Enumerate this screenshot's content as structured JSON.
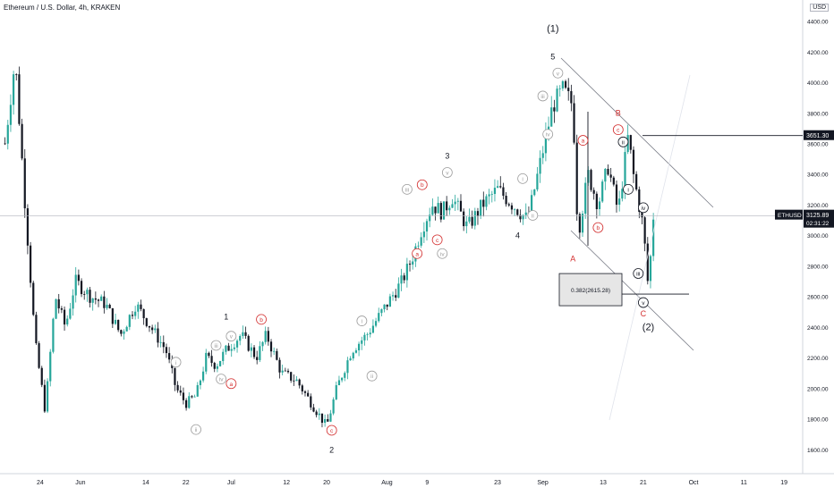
{
  "header": {
    "title": "Ethereum / U.S. Dollar, 4h, KRAKEN",
    "currency": "USD"
  },
  "colors": {
    "up": "#26a69a",
    "down": "#131722",
    "wave_red": "#d32f2f",
    "wave_gray": "#9e9e9e",
    "channel": "#787b86",
    "axis_text": "#131722"
  },
  "chart_data": {
    "type": "line",
    "title": "Ethereum / U.S. Dollar, 4h, KRAKEN",
    "ylim": [
      1500,
      4450
    ],
    "y_ticks": [
      1600,
      1800,
      2000,
      2200,
      2400,
      2600,
      2800,
      3000,
      3200,
      3400,
      3600,
      3800,
      4000,
      4200,
      4400
    ],
    "x_ticks": [
      "24",
      "Jun",
      "14",
      "22",
      "Jul",
      "12",
      "20",
      "Aug",
      "9",
      "23",
      "Sep",
      "13",
      "21",
      "Oct",
      "11",
      "19"
    ],
    "grid": false,
    "series": [
      {
        "x": [
          "May 17",
          "May 19",
          "May 21",
          "May 23",
          "May 25",
          "May 27",
          "May 29",
          "May 31",
          "Jun 3",
          "Jun 6",
          "Jun 9",
          "Jun 12",
          "Jun 15",
          "Jun 18",
          "Jun 20",
          "Jun 22",
          "Jun 24",
          "Jun 26",
          "Jun 28",
          "Jun 30",
          "Jul 3",
          "Jul 6",
          "Jul 8",
          "Jul 11",
          "Jul 14",
          "Jul 17",
          "Jul 20",
          "Jul 22",
          "Jul 25",
          "Jul 28",
          "Aug 1",
          "Aug 4",
          "Aug 6",
          "Aug 8",
          "Aug 10",
          "Aug 12",
          "Aug 14",
          "Aug 17",
          "Aug 20",
          "Aug 23",
          "Aug 26",
          "Aug 29",
          "Aug 31",
          "Sep 2",
          "Sep 3",
          "Sep 5",
          "Sep 7",
          "Sep 8",
          "Sep 10",
          "Sep 12",
          "Sep 14",
          "Sep 16",
          "Sep 18",
          "Sep 19",
          "Sep 21",
          "Sep 22",
          "Sep 23"
        ],
        "values": [
          3600,
          4150,
          3200,
          2300,
          1850,
          2600,
          2400,
          2700,
          2600,
          2550,
          2350,
          2550,
          2400,
          2250,
          2000,
          1900,
          1950,
          2200,
          2150,
          2250,
          2350,
          2200,
          2350,
          2100,
          2050,
          1900,
          1750,
          2000,
          2250,
          2350,
          2550,
          2700,
          2850,
          3050,
          3200,
          3150,
          3250,
          3050,
          3200,
          3300,
          3200,
          3100,
          3400,
          3700,
          3850,
          3950,
          3850,
          3000,
          3400,
          3200,
          3450,
          3150,
          3650,
          3400,
          3050,
          2650,
          3125
        ]
      }
    ],
    "price_label": {
      "symbol": "ETHUSD",
      "price": "3125.89",
      "timer": "02:31:22",
      "value": 3125.89
    },
    "level_label": {
      "price": "3651.30",
      "value": 3651.3
    },
    "fib_box": {
      "text": "0.382(2615.28)",
      "value": 2615.28
    },
    "wave_labels": [
      {
        "text": "(1)",
        "date": "Sep 3",
        "price": 4330,
        "style": "major"
      },
      {
        "text": "5",
        "date": "Sep 3",
        "price": 4150,
        "style": "black"
      },
      {
        "text": "v",
        "date": "Sep 4",
        "price": 4060,
        "style": "circle-gray"
      },
      {
        "text": "iii",
        "date": "Sep 1",
        "price": 3910,
        "style": "circle-gray"
      },
      {
        "text": "iv",
        "date": "Sep 2",
        "price": 3660,
        "style": "circle-gray"
      },
      {
        "text": "ii",
        "date": "Aug 30",
        "price": 3130,
        "style": "circle-gray"
      },
      {
        "text": "i",
        "date": "Aug 28",
        "price": 3370,
        "style": "circle-gray"
      },
      {
        "text": "3",
        "date": "Aug 13",
        "price": 3500,
        "style": "black"
      },
      {
        "text": "v",
        "date": "Aug 13",
        "price": 3410,
        "style": "circle-gray"
      },
      {
        "text": "iii",
        "date": "Aug 5",
        "price": 3300,
        "style": "circle-gray"
      },
      {
        "text": "b",
        "date": "Aug 8",
        "price": 3330,
        "style": "circle-red"
      },
      {
        "text": "c",
        "date": "Aug 11",
        "price": 2970,
        "style": "circle-red"
      },
      {
        "text": "a",
        "date": "Aug 7",
        "price": 2880,
        "style": "circle-red"
      },
      {
        "text": "iv",
        "date": "Aug 12",
        "price": 2880,
        "style": "circle-gray"
      },
      {
        "text": "4",
        "date": "Aug 27",
        "price": 2980,
        "style": "black"
      },
      {
        "text": "1",
        "date": "Jun 30",
        "price": 2450,
        "style": "black"
      },
      {
        "text": "v",
        "date": "Jul 1",
        "price": 2340,
        "style": "circle-gray"
      },
      {
        "text": "iii",
        "date": "Jun 28",
        "price": 2280,
        "style": "circle-gray"
      },
      {
        "text": "iv",
        "date": "Jun 29",
        "price": 2060,
        "style": "circle-gray"
      },
      {
        "text": "a",
        "date": "Jul 1",
        "price": 2030,
        "style": "circle-red"
      },
      {
        "text": "b",
        "date": "Jul 7",
        "price": 2450,
        "style": "circle-red"
      },
      {
        "text": "i",
        "date": "Jun 20",
        "price": 2170,
        "style": "circle-gray"
      },
      {
        "text": "ii",
        "date": "Jun 24",
        "price": 1730,
        "style": "circle-gray"
      },
      {
        "text": "c",
        "date": "Jul 21",
        "price": 1725,
        "style": "circle-red"
      },
      {
        "text": "2",
        "date": "Jul 21",
        "price": 1580,
        "style": "black"
      },
      {
        "text": "i",
        "date": "Jul 27",
        "price": 2440,
        "style": "circle-gray"
      },
      {
        "text": "ii",
        "date": "Jul 29",
        "price": 2080,
        "style": "circle-gray"
      },
      {
        "text": "A",
        "date": "Sep 7",
        "price": 2830,
        "style": "red"
      },
      {
        "text": "a",
        "date": "Sep 9",
        "price": 3620,
        "style": "circle-red"
      },
      {
        "text": "b",
        "date": "Sep 12",
        "price": 3050,
        "style": "circle-red"
      },
      {
        "text": "B",
        "date": "Sep 16",
        "price": 3780,
        "style": "red"
      },
      {
        "text": "c",
        "date": "Sep 16",
        "price": 3690,
        "style": "circle-red"
      },
      {
        "text": "ii",
        "date": "Sep 17",
        "price": 3610,
        "style": "circle-black"
      },
      {
        "text": "i",
        "date": "Sep 18",
        "price": 3300,
        "style": "circle-black"
      },
      {
        "text": "iv",
        "date": "Sep 21",
        "price": 3180,
        "style": "circle-black"
      },
      {
        "text": "iii",
        "date": "Sep 20",
        "price": 2750,
        "style": "circle-black"
      },
      {
        "text": "v",
        "date": "Sep 21",
        "price": 2560,
        "style": "circle-black"
      },
      {
        "text": "C",
        "date": "Sep 21",
        "price": 2470,
        "style": "red"
      },
      {
        "text": "(2)",
        "date": "Sep 22",
        "price": 2380,
        "style": "major"
      }
    ]
  }
}
